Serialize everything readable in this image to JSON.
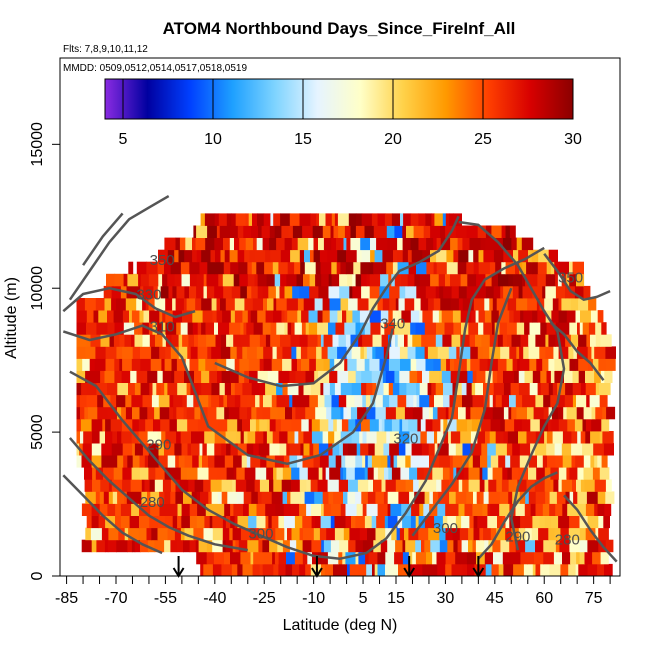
{
  "chart_data": {
    "type": "heatmap",
    "title": "ATOM4 Northbound Days_Since_FireInf_All",
    "flights_label": "Flts: 7,8,9,10,11,12",
    "dates_label": "MMDD: 0509,0512,0514,0517,0518,0519",
    "xlabel": "Latitude (deg N)",
    "ylabel": "Altitude (m)",
    "xlim": [
      -87,
      83
    ],
    "ylim": [
      0,
      18000
    ],
    "x_ticks": [
      -85,
      -70,
      -55,
      -40,
      -25,
      -10,
      5,
      15,
      30,
      45,
      60,
      75
    ],
    "y_ticks": [
      0,
      5000,
      10000,
      15000
    ],
    "colorbar": {
      "min": 4,
      "max": 30,
      "ticks": [
        5,
        10,
        15,
        20,
        25,
        30
      ],
      "colors": [
        "#8a2be2",
        "#0000a0",
        "#0040ff",
        "#1ea0ff",
        "#7fd4ff",
        "#e6f4ff",
        "#ffffc8",
        "#ffd24a",
        "#ff9a00",
        "#ff4000",
        "#d70000",
        "#8b0000"
      ]
    },
    "contour_labels": [
      {
        "value": "350",
        "lat": -56,
        "alt": 10800
      },
      {
        "value": "330",
        "lat": -60,
        "alt": 9600
      },
      {
        "value": "310",
        "lat": -56,
        "alt": 8500
      },
      {
        "value": "340",
        "lat": 14,
        "alt": 8600
      },
      {
        "value": "350",
        "lat": 68,
        "alt": 10200
      },
      {
        "value": "320",
        "lat": 18,
        "alt": 4600
      },
      {
        "value": "290",
        "lat": -57,
        "alt": 4400
      },
      {
        "value": "280",
        "lat": -59,
        "alt": 2400
      },
      {
        "value": "300",
        "lat": -26,
        "alt": 1300
      },
      {
        "value": "300",
        "lat": 30,
        "alt": 1500
      },
      {
        "value": "290",
        "lat": 52,
        "alt": 1200
      },
      {
        "value": "280",
        "lat": 67,
        "alt": 1100
      }
    ],
    "profile_arrows_lat": [
      -51,
      -9,
      19,
      40
    ],
    "description": "Curtain of days since fire influence vs latitude and altitude; mostly 20-30 days with pockets of 8-18 days in the tropics."
  }
}
